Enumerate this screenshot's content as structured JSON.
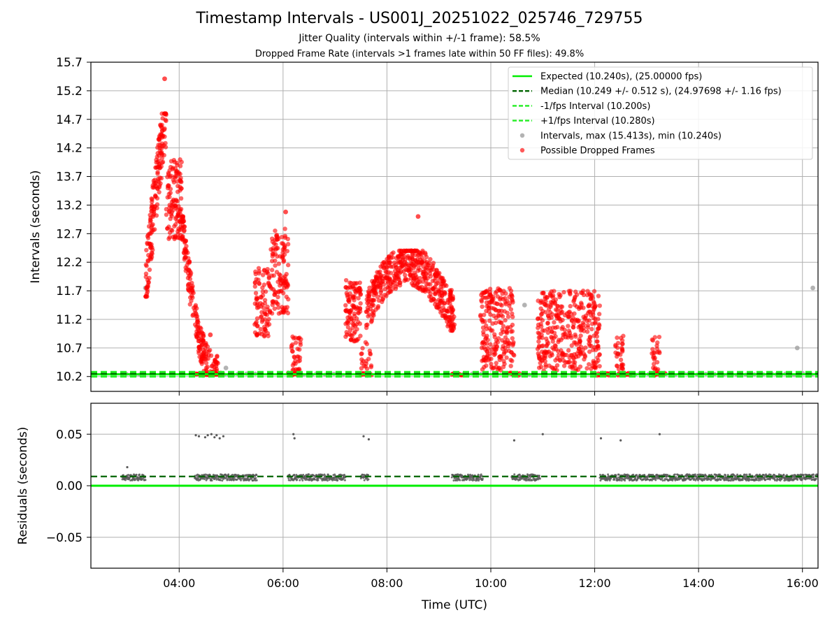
{
  "figure": {
    "title": "Timestamp Intervals - US001J_20251022_025746_729755",
    "subtitle1": "Jitter Quality (intervals within +/-1 frame): 58.5%",
    "subtitle2": "Dropped Frame Rate (intervals >1 frames late within 50 FF files): 49.8%"
  },
  "colors": {
    "expected": "#00ee00",
    "median": "#006400",
    "fps_interval": "#22ee22",
    "intervals": "#a0a0a0",
    "dropped": "#ff0000",
    "residuals": "#5a5a5a",
    "grid": "#b0b0b0"
  },
  "chart_data": [
    {
      "type": "scatter",
      "panel": "top",
      "xlabel": "",
      "ylabel": "Intervals (seconds)",
      "x_unit": "hours UTC",
      "xlim": [
        2.3,
        16.3
      ],
      "ylim": [
        9.94,
        15.7
      ],
      "yticks": [
        10.2,
        10.7,
        11.2,
        11.7,
        12.2,
        12.7,
        13.2,
        13.7,
        14.2,
        14.7,
        15.2,
        15.7
      ],
      "ytick_labels": [
        "10.2",
        "10.7",
        "11.2",
        "11.7",
        "12.2",
        "12.7",
        "13.2",
        "13.7",
        "14.2",
        "14.7",
        "15.2",
        "15.7"
      ],
      "xticks": [
        4,
        6,
        8,
        10,
        12,
        14,
        16
      ],
      "grid": true,
      "legend_position": "top-right",
      "legend": [
        {
          "label": "Expected (10.240s), (25.00000 fps)",
          "style": "line",
          "color": "#00ee00"
        },
        {
          "label": "Median (10.249 +/- 0.512 s), (24.97698 +/- 1.16 fps)",
          "style": "dashed",
          "color": "#006400"
        },
        {
          "label": "-1/fps Interval (10.200s)",
          "style": "dashed",
          "color": "#22ee22"
        },
        {
          "label": "+1/fps Interval (10.280s)",
          "style": "dashed",
          "color": "#22ee22"
        },
        {
          "label": "Intervals, max (15.413s), min (10.240s)",
          "style": "dot",
          "color": "#a0a0a0"
        },
        {
          "label": "Possible Dropped Frames",
          "style": "dot",
          "color": "#ff0000"
        }
      ],
      "hlines": {
        "expected": 10.24,
        "median": 10.249,
        "minus_fps": 10.2,
        "plus_fps": 10.28
      },
      "dropped_clusters": [
        {
          "x": [
            3.35,
            3.75
          ],
          "y": [
            11.6,
            14.8
          ],
          "n": 180,
          "shape": "rise"
        },
        {
          "x": [
            3.75,
            4.05
          ],
          "y": [
            12.6,
            14.0
          ],
          "n": 120,
          "shape": "flat"
        },
        {
          "x": [
            4.05,
            4.75
          ],
          "y": [
            10.24,
            13.0
          ],
          "n": 240,
          "shape": "decay"
        },
        {
          "x": [
            5.45,
            5.75
          ],
          "y": [
            10.9,
            12.1
          ],
          "n": 90,
          "shape": "flat"
        },
        {
          "x": [
            5.75,
            6.1
          ],
          "y": [
            11.3,
            12.8
          ],
          "n": 120,
          "shape": "flat"
        },
        {
          "x": [
            6.15,
            6.35
          ],
          "y": [
            10.24,
            10.9
          ],
          "n": 40,
          "shape": "flat"
        },
        {
          "x": [
            7.2,
            7.5
          ],
          "y": [
            10.8,
            11.9
          ],
          "n": 110,
          "shape": "flat"
        },
        {
          "x": [
            7.5,
            7.7
          ],
          "y": [
            10.24,
            10.8
          ],
          "n": 20,
          "shape": "flat"
        },
        {
          "x": [
            7.6,
            9.3
          ],
          "y": [
            10.8,
            12.4
          ],
          "n": 520,
          "shape": "arch"
        },
        {
          "x": [
            9.8,
            10.45
          ],
          "y": [
            10.3,
            11.75
          ],
          "n": 220,
          "shape": "flat"
        },
        {
          "x": [
            10.9,
            12.1
          ],
          "y": [
            10.3,
            11.7
          ],
          "n": 380,
          "shape": "flat"
        },
        {
          "x": [
            12.4,
            12.55
          ],
          "y": [
            10.3,
            10.95
          ],
          "n": 30,
          "shape": "flat"
        },
        {
          "x": [
            13.1,
            13.25
          ],
          "y": [
            10.3,
            10.9
          ],
          "n": 25,
          "shape": "flat"
        }
      ],
      "dropped_baseline_segments": [
        [
          4.3,
          4.85
        ],
        [
          6.1,
          6.35
        ],
        [
          7.5,
          7.7
        ],
        [
          9.25,
          9.45
        ],
        [
          10.35,
          10.55
        ],
        [
          12.05,
          12.3
        ],
        [
          12.45,
          12.7
        ],
        [
          13.15,
          13.35
        ]
      ],
      "dropped_outliers": [
        {
          "x": 3.72,
          "y": 15.41
        },
        {
          "x": 8.6,
          "y": 13.0
        },
        {
          "x": 6.05,
          "y": 13.08
        },
        {
          "x": 4.6,
          "y": 10.93
        }
      ],
      "interval_baseline_segments": [
        [
          2.9,
          3.35
        ],
        [
          4.7,
          5.5
        ],
        [
          6.3,
          7.2
        ],
        [
          9.3,
          9.85
        ],
        [
          10.4,
          10.9
        ],
        [
          12.1,
          16.3
        ]
      ],
      "interval_outliers": [
        {
          "x": 10.65,
          "y": 11.45
        },
        {
          "x": 16.2,
          "y": 11.75
        },
        {
          "x": 15.9,
          "y": 10.7
        },
        {
          "x": 4.9,
          "y": 10.35
        },
        {
          "x": 3.35,
          "y": 11.75
        },
        {
          "x": 12.45,
          "y": 10.6
        }
      ]
    },
    {
      "type": "scatter",
      "panel": "bottom",
      "xlabel": "Time (UTC)",
      "ylabel": "Residuals (seconds)",
      "x_unit": "hours UTC",
      "xlim": [
        2.3,
        16.3
      ],
      "ylim": [
        -0.08,
        0.08
      ],
      "yticks": [
        -0.05,
        0.0,
        0.05
      ],
      "ytick_labels": [
        "−0.05",
        "0.00",
        "0.05"
      ],
      "xticks": [
        4,
        6,
        8,
        10,
        12,
        14,
        16
      ],
      "xtick_labels": [
        "04:00",
        "06:00",
        "08:00",
        "10:00",
        "12:00",
        "14:00",
        "16:00"
      ],
      "grid": true,
      "hlines": {
        "zero": 0.0,
        "median": 0.009
      },
      "residual_segments": [
        [
          2.9,
          3.35
        ],
        [
          4.3,
          5.5
        ],
        [
          6.1,
          7.2
        ],
        [
          7.5,
          7.65
        ],
        [
          9.25,
          9.85
        ],
        [
          10.4,
          10.95
        ],
        [
          12.1,
          16.3
        ]
      ],
      "residual_level": 0.008,
      "residual_spread": 0.006,
      "residual_outliers": [
        {
          "x": 3.0,
          "y": 0.018
        },
        {
          "x": 4.32,
          "y": 0.049
        },
        {
          "x": 4.38,
          "y": 0.048
        },
        {
          "x": 4.55,
          "y": 0.049
        },
        {
          "x": 4.62,
          "y": 0.05
        },
        {
          "x": 4.68,
          "y": 0.047
        },
        {
          "x": 4.72,
          "y": 0.049
        },
        {
          "x": 4.78,
          "y": 0.046
        },
        {
          "x": 4.85,
          "y": 0.048
        },
        {
          "x": 4.5,
          "y": 0.047
        },
        {
          "x": 6.2,
          "y": 0.05
        },
        {
          "x": 6.22,
          "y": 0.046
        },
        {
          "x": 7.55,
          "y": 0.048
        },
        {
          "x": 7.65,
          "y": 0.045
        },
        {
          "x": 10.45,
          "y": 0.044
        },
        {
          "x": 11.0,
          "y": 0.05
        },
        {
          "x": 12.12,
          "y": 0.046
        },
        {
          "x": 12.5,
          "y": 0.044
        },
        {
          "x": 13.25,
          "y": 0.05
        }
      ]
    }
  ]
}
